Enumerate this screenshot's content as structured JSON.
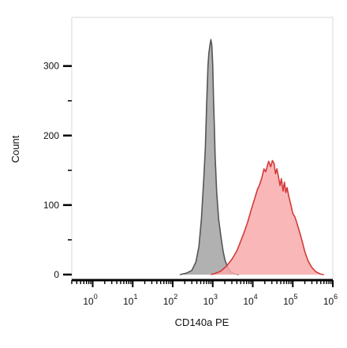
{
  "chart_data": {
    "type": "area",
    "xlabel": "CD140a PE",
    "ylabel": "Count",
    "x_scale": "log",
    "xlim": [
      0.3,
      1000000
    ],
    "ylim": [
      -8,
      370
    ],
    "y_ticks": [
      0,
      100,
      200,
      300
    ],
    "x_ticks": [
      {
        "value": 1,
        "base": "10",
        "exp": "0"
      },
      {
        "value": 10,
        "base": "10",
        "exp": "1"
      },
      {
        "value": 100,
        "base": "10",
        "exp": "2"
      },
      {
        "value": 1000,
        "base": "10",
        "exp": "3"
      },
      {
        "value": 10000,
        "base": "10",
        "exp": "4"
      },
      {
        "value": 100000,
        "base": "10",
        "exp": "5"
      },
      {
        "value": 1000000,
        "base": "10",
        "exp": "6"
      }
    ],
    "grid": false,
    "series": [
      {
        "color": "#a9a9a9",
        "edge": "#555555",
        "x": [
          150,
          220,
          300,
          380,
          450,
          520,
          600,
          650,
          700,
          760,
          800,
          850,
          900,
          950,
          1000,
          1050,
          1100,
          1150,
          1250,
          1400,
          1600,
          1800,
          2000,
          2300,
          2600,
          3000,
          3600,
          4500
        ],
        "y": [
          0,
          2,
          6,
          18,
          40,
          80,
          140,
          180,
          240,
          300,
          318,
          330,
          338,
          330,
          300,
          250,
          210,
          170,
          120,
          80,
          55,
          35,
          22,
          12,
          6,
          3,
          1,
          0
        ]
      },
      {
        "color": "#f8aaaa",
        "edge": "#d43a3a",
        "x": [
          900,
          1200,
          1600,
          2200,
          3000,
          4000,
          5000,
          6000,
          7500,
          9000,
          11000,
          13000,
          15000,
          17000,
          19000,
          21000,
          23000,
          25000,
          28000,
          31000,
          34000,
          37000,
          40000,
          44000,
          48000,
          52000,
          57000,
          62000,
          67000,
          72000,
          80000,
          90000,
          100000,
          115000,
          130000,
          150000,
          175000,
          200000,
          240000,
          300000,
          380000,
          480000,
          600000
        ],
        "y": [
          0,
          2,
          5,
          12,
          22,
          34,
          48,
          60,
          76,
          92,
          108,
          122,
          130,
          140,
          152,
          148,
          156,
          163,
          155,
          164,
          160,
          145,
          152,
          140,
          128,
          138,
          120,
          133,
          118,
          125,
          112,
          100,
          88,
          82,
          72,
          60,
          46,
          33,
          20,
          10,
          4,
          1,
          0
        ]
      }
    ]
  }
}
